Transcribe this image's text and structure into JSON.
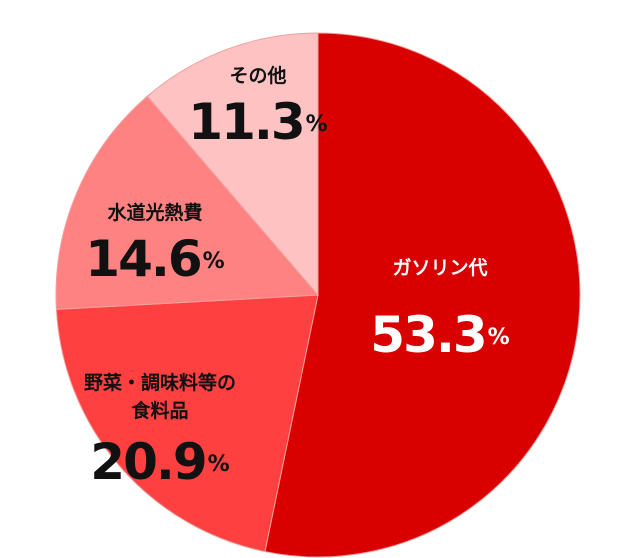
{
  "chart_data": {
    "type": "pie",
    "categories": [
      "ガソリン代",
      "野菜・調味料等の食料品",
      "水道光熱費",
      "その他"
    ],
    "values": [
      53.3,
      20.9,
      14.6,
      11.3
    ],
    "value_labels": [
      "53.3%",
      "20.9%",
      "14.6%",
      "11.3%"
    ],
    "colors": [
      "#d90000",
      "#ff4040",
      "#ff8282",
      "#ffc2c2"
    ]
  }
}
